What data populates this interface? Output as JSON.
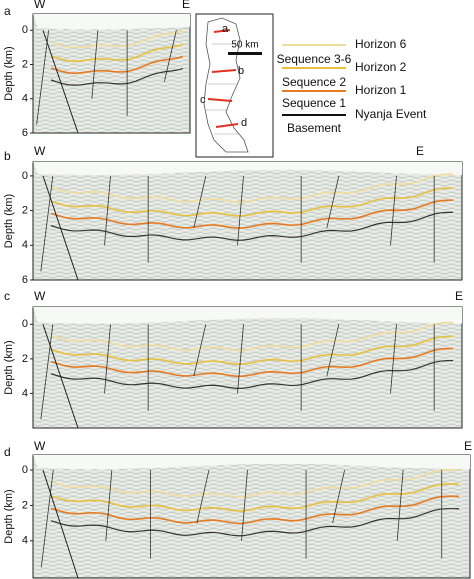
{
  "panels": [
    {
      "label": "a",
      "left": "W",
      "right": "E",
      "y_label": "Depth (km)",
      "ylim": [
        -0.95,
        6
      ],
      "yticks": [
        0,
        2,
        4,
        6
      ]
    },
    {
      "label": "b",
      "left": "W",
      "right": "E",
      "y_label": "Depth (km)",
      "ylim": [
        -0.8,
        6
      ],
      "yticks": [
        0,
        2,
        4,
        6
      ]
    },
    {
      "label": "c",
      "left": "W",
      "right": "E",
      "y_label": "Depth (km)",
      "ylim": [
        -1,
        6
      ],
      "yticks": [
        0,
        2,
        4
      ]
    },
    {
      "label": "d",
      "left": "W",
      "right": "E",
      "y_label": "Depth (km)",
      "ylim": [
        -0.85,
        6.1
      ],
      "yticks": [
        0,
        2,
        4
      ]
    }
  ],
  "map": {
    "labels": [
      "a",
      "b",
      "c",
      "d"
    ],
    "scale": "50 km"
  },
  "legend": {
    "items": [
      {
        "label": "Horizon 6",
        "color": "#f1dca0"
      },
      {
        "label": "Sequence 3-6"
      },
      {
        "label": "Horizon 2",
        "color": "#e8c040"
      },
      {
        "label": "Sequence 2"
      },
      {
        "label": "Horizon 1",
        "color": "#e57a22"
      },
      {
        "label": "Sequence 1"
      },
      {
        "label": "Nyanja Event",
        "color": "#111111"
      },
      {
        "label": "Basement"
      }
    ]
  }
}
